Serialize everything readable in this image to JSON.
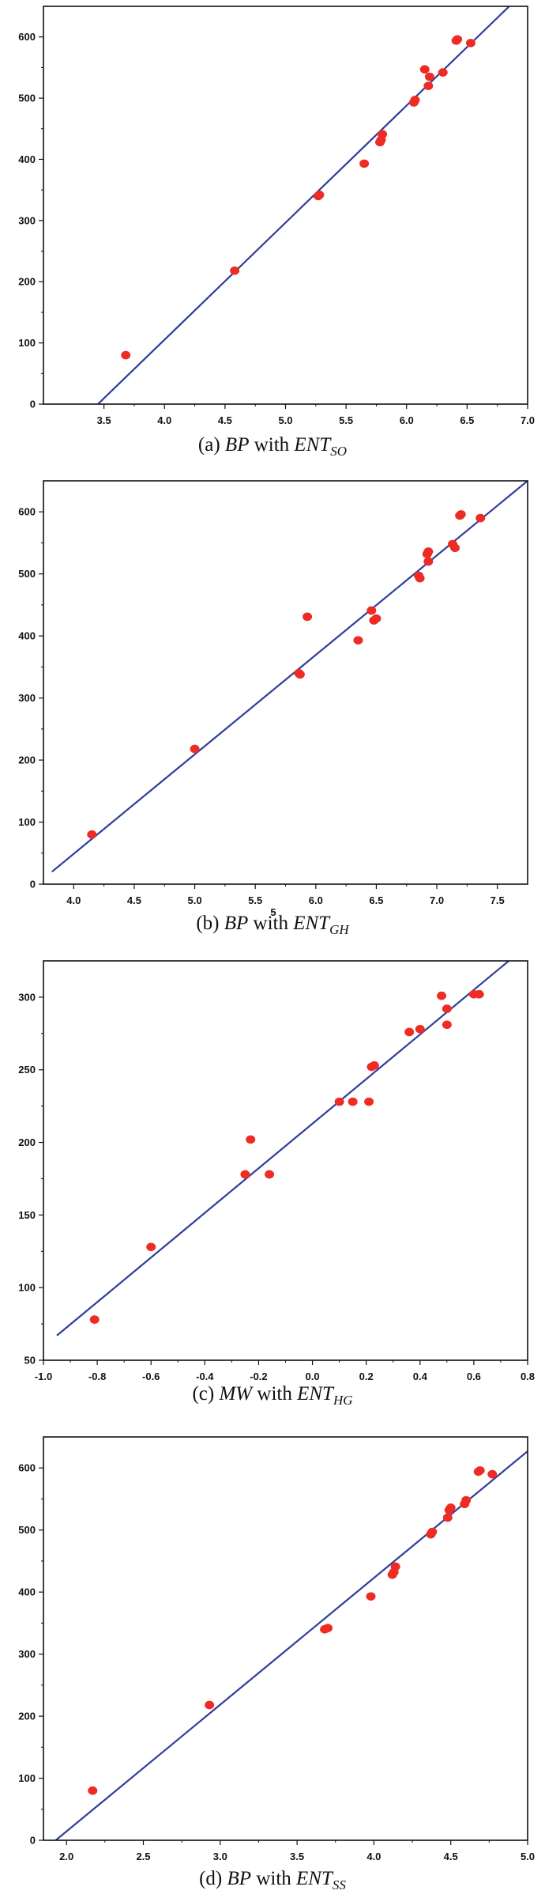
{
  "chart_data": [
    {
      "type": "scatter",
      "caption": {
        "prefix": "(a) ",
        "var": "BP",
        "mid": " with ",
        "desc": "ENT",
        "sub": "SO"
      },
      "xlim": [
        3.0,
        7.0
      ],
      "ylim": [
        0,
        650
      ],
      "xticks": [
        "3.5",
        "4.0",
        "4.5",
        "5.0",
        "5.5",
        "6.0",
        "6.5",
        "7.0"
      ],
      "yticks": [
        "0",
        "100",
        "200",
        "300",
        "400",
        "500",
        "600"
      ],
      "points": [
        [
          3.68,
          80
        ],
        [
          4.58,
          218
        ],
        [
          5.27,
          340
        ],
        [
          5.28,
          342
        ],
        [
          5.65,
          393
        ],
        [
          5.78,
          428
        ],
        [
          5.79,
          432
        ],
        [
          5.8,
          441
        ],
        [
          6.06,
          493
        ],
        [
          6.07,
          497
        ],
        [
          6.15,
          547
        ],
        [
          6.18,
          520
        ],
        [
          6.19,
          535
        ],
        [
          6.3,
          542
        ],
        [
          6.41,
          594
        ],
        [
          6.42,
          596
        ],
        [
          6.53,
          590
        ]
      ],
      "fit_line": [
        [
          3.45,
          0
        ],
        [
          6.9,
          660
        ]
      ],
      "marker_color": "#ee2b24",
      "line_color": "#2f3d9a"
    },
    {
      "type": "scatter",
      "caption": {
        "prefix": "(b) ",
        "var": "BP",
        "mid": " with ",
        "desc": "ENT",
        "sub": "GH"
      },
      "stray_text": "5",
      "xlim": [
        3.75,
        7.75
      ],
      "ylim": [
        0,
        650
      ],
      "xticks": [
        "4.0",
        "4.5",
        "5.0",
        "5.5",
        "6.0",
        "6.5",
        "7.0",
        "7.5"
      ],
      "yticks": [
        "0",
        "100",
        "200",
        "300",
        "400",
        "500",
        "600"
      ],
      "points": [
        [
          4.15,
          80
        ],
        [
          5.0,
          218
        ],
        [
          5.86,
          340
        ],
        [
          5.87,
          338
        ],
        [
          5.93,
          431
        ],
        [
          6.35,
          393
        ],
        [
          6.46,
          441
        ],
        [
          6.48,
          425
        ],
        [
          6.5,
          428
        ],
        [
          6.85,
          497
        ],
        [
          6.86,
          493
        ],
        [
          6.92,
          532
        ],
        [
          6.93,
          536
        ],
        [
          6.93,
          520
        ],
        [
          7.13,
          548
        ],
        [
          7.15,
          542
        ],
        [
          7.19,
          594
        ],
        [
          7.2,
          596
        ],
        [
          7.36,
          590
        ]
      ],
      "fit_line": [
        [
          3.82,
          20
        ],
        [
          7.75,
          650
        ]
      ],
      "marker_color": "#ee2b24",
      "line_color": "#2f3d9a"
    },
    {
      "type": "scatter",
      "caption": {
        "prefix": "(c) ",
        "var": "MW",
        "mid": " with ",
        "desc": "ENT",
        "sub": "HG"
      },
      "xlim": [
        -1.0,
        0.8
      ],
      "ylim": [
        50,
        325
      ],
      "xticks": [
        "-1.0",
        "-0.8",
        "-0.6",
        "-0.4",
        "-0.2",
        "0.0",
        "0.2",
        "0.4",
        "0.6",
        "0.8"
      ],
      "yticks": [
        "50",
        "100",
        "150",
        "200",
        "250",
        "300"
      ],
      "points": [
        [
          -0.81,
          78
        ],
        [
          -0.6,
          128
        ],
        [
          -0.25,
          178
        ],
        [
          -0.23,
          202
        ],
        [
          -0.16,
          178
        ],
        [
          0.1,
          228
        ],
        [
          0.15,
          228
        ],
        [
          0.21,
          228
        ],
        [
          0.22,
          252
        ],
        [
          0.23,
          253
        ],
        [
          0.36,
          276
        ],
        [
          0.4,
          278
        ],
        [
          0.48,
          301
        ],
        [
          0.5,
          281
        ],
        [
          0.5,
          292
        ],
        [
          0.6,
          302
        ],
        [
          0.62,
          302
        ]
      ],
      "fit_line": [
        [
          -0.95,
          67
        ],
        [
          0.73,
          325
        ]
      ],
      "marker_color": "#ee2b24",
      "line_color": "#2f3d9a"
    },
    {
      "type": "scatter",
      "caption": {
        "prefix": "(d) ",
        "var": "BP",
        "mid": " with ",
        "desc": "ENT",
        "sub": "SS"
      },
      "xlim": [
        1.85,
        5.0
      ],
      "ylim": [
        0,
        650
      ],
      "xticks": [
        "2.0",
        "2.5",
        "3.0",
        "3.5",
        "4.0",
        "4.5",
        "5.0"
      ],
      "yticks": [
        "0",
        "100",
        "200",
        "300",
        "400",
        "500",
        "600"
      ],
      "points": [
        [
          2.17,
          80
        ],
        [
          2.93,
          218
        ],
        [
          3.68,
          340
        ],
        [
          3.7,
          342
        ],
        [
          3.98,
          393
        ],
        [
          4.12,
          428
        ],
        [
          4.13,
          432
        ],
        [
          4.14,
          441
        ],
        [
          4.37,
          493
        ],
        [
          4.38,
          497
        ],
        [
          4.48,
          520
        ],
        [
          4.49,
          532
        ],
        [
          4.5,
          536
        ],
        [
          4.59,
          542
        ],
        [
          4.6,
          548
        ],
        [
          4.68,
          594
        ],
        [
          4.69,
          596
        ],
        [
          4.77,
          590
        ]
      ],
      "fit_line": [
        [
          1.93,
          0
        ],
        [
          5.0,
          627
        ]
      ],
      "marker_color": "#ee2b24",
      "line_color": "#2f3d9a"
    }
  ]
}
